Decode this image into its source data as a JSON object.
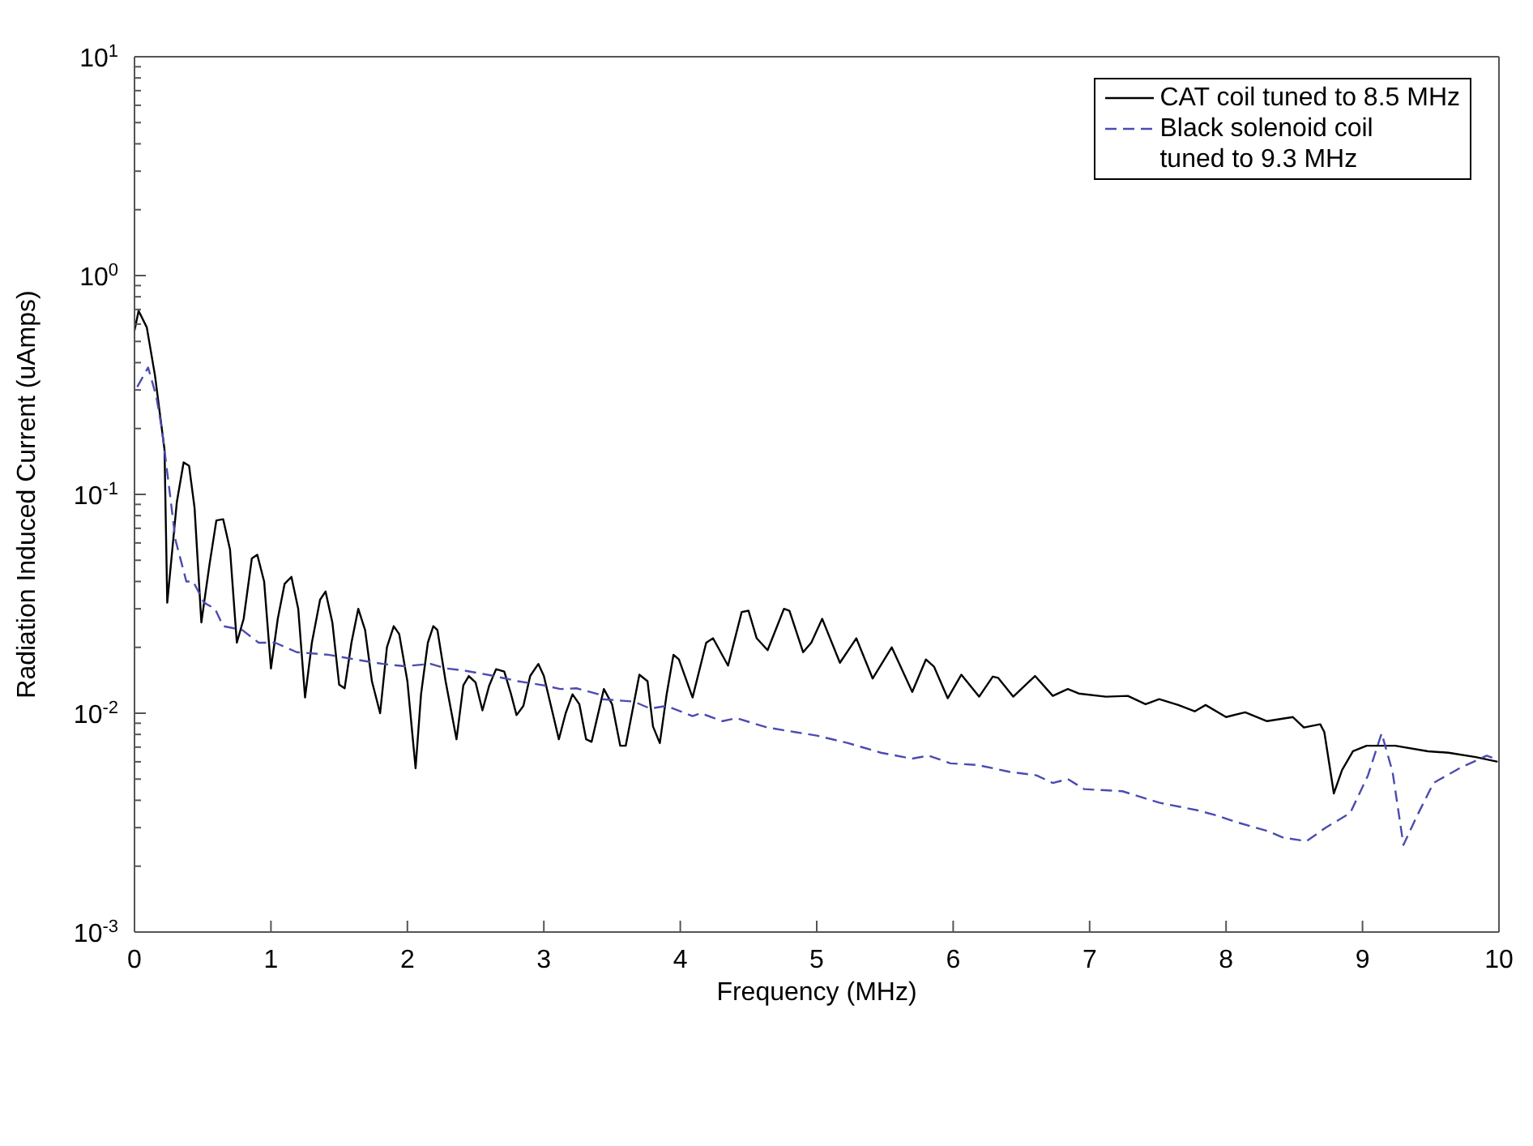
{
  "chart_data": {
    "type": "line",
    "xlabel": "Frequency (MHz)",
    "ylabel": "Radiation Induced Current (uAmps)",
    "log": "y",
    "xlim": [
      0,
      10
    ],
    "xticks": [
      0,
      1,
      2,
      3,
      4,
      5,
      6,
      7,
      8,
      9,
      10
    ],
    "ylim": [
      0.001,
      10
    ],
    "yticks": [
      {
        "value": 0.001,
        "label": "10$^{-3}$"
      },
      {
        "value": 0.002,
        "label": null
      },
      {
        "value": 0.003,
        "label": null
      },
      {
        "value": 0.004,
        "label": null
      },
      {
        "value": 0.005,
        "label": null
      },
      {
        "value": 0.006,
        "label": null
      },
      {
        "value": 0.007,
        "label": null
      },
      {
        "value": 0.008,
        "label": null
      },
      {
        "value": 0.009,
        "label": null
      },
      {
        "value": 0.01,
        "label": "10$^{-2}$"
      },
      {
        "value": 0.02,
        "label": null
      },
      {
        "value": 0.03,
        "label": null
      },
      {
        "value": 0.04,
        "label": null
      },
      {
        "value": 0.05,
        "label": null
      },
      {
        "value": 0.06,
        "label": null
      },
      {
        "value": 0.07,
        "label": null
      },
      {
        "value": 0.08,
        "label": null
      },
      {
        "value": 0.09,
        "label": null
      },
      {
        "value": 0.1,
        "label": "10$^{-1}$"
      },
      {
        "value": 0.2,
        "label": null
      },
      {
        "value": 0.3,
        "label": null
      },
      {
        "value": 0.4,
        "label": null
      },
      {
        "value": 0.5,
        "label": null
      },
      {
        "value": 0.6,
        "label": null
      },
      {
        "value": 0.7,
        "label": null
      },
      {
        "value": 0.8,
        "label": null
      },
      {
        "value": 0.9,
        "label": null
      },
      {
        "value": 1,
        "label": "10$^{0}$"
      },
      {
        "value": 2,
        "label": null
      },
      {
        "value": 3,
        "label": null
      },
      {
        "value": 4,
        "label": null
      },
      {
        "value": 5,
        "label": null
      },
      {
        "value": 6,
        "label": null
      },
      {
        "value": 7,
        "label": null
      },
      {
        "value": 8,
        "label": null
      },
      {
        "value": 9,
        "label": null
      },
      {
        "value": 10,
        "label": "10$^{1}$"
      }
    ],
    "grid": false,
    "legend": "top right",
    "marker": "none",
    "series": [
      {
        "name": "CAT coil tuned to 8.5 MHz",
        "color": "#000000",
        "line_style": "solid",
        "x": [
          0,
          0.03,
          0.09,
          0.15,
          0.22,
          0.24,
          0.31,
          0.36,
          0.4,
          0.44,
          0.49,
          0.55,
          0.6,
          0.65,
          0.7,
          0.75,
          0.8,
          0.86,
          0.9,
          0.95,
          1.0,
          1.05,
          1.1,
          1.15,
          1.2,
          1.25,
          1.3,
          1.36,
          1.4,
          1.45,
          1.5,
          1.54,
          1.59,
          1.64,
          1.69,
          1.74,
          1.8,
          1.85,
          1.9,
          1.94,
          2.0,
          2.06,
          2.1,
          2.15,
          2.19,
          2.22,
          2.28,
          2.36,
          2.41,
          2.45,
          2.5,
          2.55,
          2.6,
          2.65,
          2.71,
          2.76,
          2.8,
          2.85,
          2.9,
          2.96,
          3.0,
          3.06,
          3.11,
          3.16,
          3.21,
          3.26,
          3.31,
          3.35,
          3.44,
          3.5,
          3.56,
          3.6,
          3.7,
          3.76,
          3.8,
          3.85,
          3.9,
          3.95,
          3.99,
          4.09,
          4.19,
          4.24,
          4.35,
          4.45,
          4.5,
          4.56,
          4.64,
          4.76,
          4.8,
          4.9,
          4.96,
          5.04,
          5.17,
          5.29,
          5.41,
          5.55,
          5.7,
          5.8,
          5.86,
          5.96,
          6.06,
          6.19,
          6.29,
          6.33,
          6.44,
          6.6,
          6.73,
          6.84,
          6.92,
          7.12,
          7.28,
          7.41,
          7.51,
          7.65,
          7.77,
          7.85,
          8.0,
          8.14,
          8.3,
          8.49,
          8.57,
          8.69,
          8.72,
          8.79,
          8.85,
          8.93,
          9.03,
          9.24,
          9.48,
          9.63,
          9.83,
          9.99
        ],
        "values": [
          0.56,
          0.69,
          0.58,
          0.35,
          0.16,
          0.032,
          0.092,
          0.14,
          0.135,
          0.087,
          0.026,
          0.048,
          0.076,
          0.077,
          0.056,
          0.021,
          0.027,
          0.051,
          0.053,
          0.04,
          0.016,
          0.027,
          0.039,
          0.042,
          0.03,
          0.0118,
          0.021,
          0.033,
          0.036,
          0.026,
          0.0135,
          0.013,
          0.021,
          0.03,
          0.024,
          0.014,
          0.01,
          0.02,
          0.025,
          0.023,
          0.014,
          0.0056,
          0.0122,
          0.021,
          0.025,
          0.024,
          0.014,
          0.0076,
          0.0134,
          0.0148,
          0.0138,
          0.0103,
          0.0134,
          0.0159,
          0.0155,
          0.0122,
          0.0098,
          0.0108,
          0.0148,
          0.0168,
          0.0148,
          0.0103,
          0.0076,
          0.01,
          0.0122,
          0.011,
          0.0076,
          0.0074,
          0.0129,
          0.011,
          0.0071,
          0.0071,
          0.015,
          0.014,
          0.0087,
          0.0073,
          0.0122,
          0.0185,
          0.0176,
          0.0118,
          0.021,
          0.022,
          0.0165,
          0.029,
          0.0294,
          0.022,
          0.0194,
          0.03,
          0.0294,
          0.019,
          0.021,
          0.027,
          0.017,
          0.022,
          0.0144,
          0.02,
          0.0125,
          0.0176,
          0.0163,
          0.0117,
          0.015,
          0.0119,
          0.0147,
          0.0145,
          0.0119,
          0.0148,
          0.012,
          0.0129,
          0.0123,
          0.0119,
          0.012,
          0.011,
          0.0116,
          0.0109,
          0.0102,
          0.0109,
          0.0096,
          0.0101,
          0.0092,
          0.0096,
          0.0086,
          0.0089,
          0.0082,
          0.0043,
          0.0055,
          0.0067,
          0.0071,
          0.0071,
          0.0067,
          0.0066,
          0.0063,
          0.006
        ]
      },
      {
        "name": "Black solenoid coil\ntuned to 9.3 MHz",
        "color": "#4b4bb0",
        "line_style": "dashed",
        "x": [
          0.02,
          0.1,
          0.16,
          0.2,
          0.26,
          0.3,
          0.38,
          0.43,
          0.51,
          0.59,
          0.65,
          0.79,
          0.91,
          1.03,
          1.19,
          1.42,
          1.62,
          1.82,
          1.98,
          2.17,
          2.29,
          2.41,
          2.61,
          2.81,
          3.0,
          3.12,
          3.24,
          3.4,
          3.42,
          3.66,
          3.78,
          3.9,
          4.09,
          4.15,
          4.31,
          4.41,
          4.64,
          4.84,
          5.0,
          5.23,
          5.47,
          5.7,
          5.82,
          5.98,
          6.18,
          6.41,
          6.61,
          6.73,
          6.84,
          6.96,
          7.24,
          7.51,
          7.79,
          7.94,
          8.06,
          8.3,
          8.42,
          8.59,
          8.73,
          8.91,
          9.04,
          9.14,
          9.22,
          9.3,
          9.4,
          9.52,
          9.71,
          9.91,
          10.0
        ],
        "values": [
          0.31,
          0.38,
          0.28,
          0.2,
          0.1,
          0.062,
          0.04,
          0.04,
          0.032,
          0.03,
          0.025,
          0.024,
          0.021,
          0.021,
          0.019,
          0.0185,
          0.0176,
          0.0168,
          0.0164,
          0.0168,
          0.016,
          0.0157,
          0.0149,
          0.014,
          0.0134,
          0.0129,
          0.013,
          0.0122,
          0.0116,
          0.0113,
          0.0105,
          0.0108,
          0.0097,
          0.01,
          0.0092,
          0.0095,
          0.0086,
          0.0082,
          0.0079,
          0.0073,
          0.0066,
          0.0062,
          0.0064,
          0.0059,
          0.0058,
          0.0054,
          0.0052,
          0.0048,
          0.005,
          0.0045,
          0.0044,
          0.0039,
          0.0036,
          0.0034,
          0.0032,
          0.0029,
          0.0027,
          0.0026,
          0.003,
          0.0035,
          0.0052,
          0.0081,
          0.0054,
          0.0025,
          0.0034,
          0.0048,
          0.0056,
          0.0064,
          0.0061
        ]
      }
    ]
  }
}
